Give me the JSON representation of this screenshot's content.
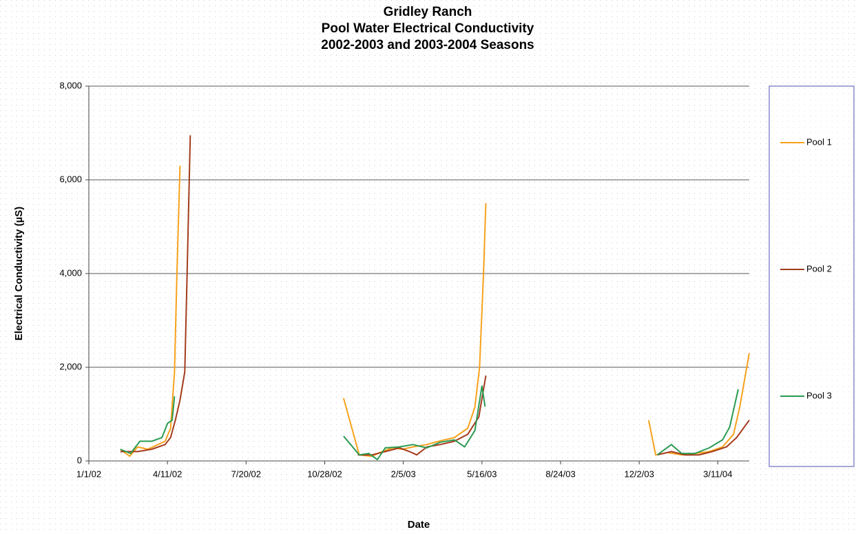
{
  "chart_data": {
    "type": "line",
    "title": [
      "Gridley Ranch",
      "Pool Water Electrical Conductivity",
      "2002-2003 and 2003-2004 Seasons"
    ],
    "x_label": "Date",
    "y_label": "Electrical Conductivity  (µS)",
    "xlim": [
      "1/1/02",
      "4/20/04"
    ],
    "xticks": [
      "1/1/02",
      "4/11/02",
      "7/20/02",
      "10/28/02",
      "2/5/03",
      "5/16/03",
      "8/24/03",
      "12/2/03",
      "3/11/04"
    ],
    "ylim": [
      0,
      8000
    ],
    "yticks": [
      0,
      {
        "value": 2000,
        "label": "2,000"
      },
      {
        "value": 4000,
        "label": "4,000"
      },
      {
        "value": 6000,
        "label": "6,000"
      },
      {
        "value": 8000,
        "label": "8,000"
      }
    ],
    "grid": true,
    "legend": "right",
    "series": [
      {
        "name": "Pool 1",
        "color": "#f7a11a",
        "x": [
          "2/10/02",
          "2/22/02",
          "3/4/02",
          "3/17/02",
          "3/30/02",
          "4/8/02",
          "4/15/02",
          "4/20/02",
          "4/23/02",
          "4/27/02",
          null,
          "11/21/02",
          "12/11/02",
          "12/27/02",
          "1/9/03",
          "1/22/03",
          "2/4/03",
          "2/17/03",
          "3/7/03",
          "3/24/03",
          "4/11/03",
          "4/28/03",
          "5/7/03",
          "5/13/03",
          "5/18/03",
          "5/21/03",
          null,
          "12/14/03",
          "12/23/03",
          "1/7/04",
          "1/25/04",
          "2/11/04",
          "2/29/04",
          "3/17/04",
          "3/31/04",
          "4/8/04",
          "4/20/04"
        ],
        "values": [
          250,
          100,
          300,
          250,
          350,
          420,
          700,
          1900,
          4000,
          6300,
          null,
          1340,
          130,
          100,
          200,
          280,
          250,
          300,
          350,
          430,
          500,
          700,
          1150,
          2000,
          4000,
          5500,
          null,
          870,
          130,
          180,
          130,
          160,
          200,
          300,
          570,
          1160,
          2300
        ]
      },
      {
        "name": "Pool 2",
        "color": "#a33a1c",
        "x": [
          "2/10/02",
          "3/4/02",
          "3/22/02",
          "4/8/02",
          "4/15/02",
          "4/21/02",
          "4/27/02",
          "5/3/02",
          "5/6/02",
          "5/10/02",
          null,
          "12/9/02",
          "12/27/02",
          "1/13/03",
          "1/31/03",
          "2/13/03",
          "2/22/03",
          "3/7/03",
          "3/24/03",
          "4/11/03",
          "4/28/03",
          "5/12/03",
          "5/21/03",
          null,
          "12/25/03",
          "1/12/04",
          "1/29/04",
          "2/16/04",
          "3/4/04",
          "3/22/04",
          "4/4/04",
          "4/20/04"
        ],
        "values": [
          200,
          200,
          250,
          350,
          500,
          870,
          1300,
          1900,
          4000,
          6950,
          null,
          130,
          130,
          200,
          280,
          200,
          130,
          300,
          350,
          420,
          570,
          940,
          1820,
          null,
          130,
          200,
          130,
          130,
          200,
          300,
          500,
          870
        ]
      },
      {
        "name": "Pool 3",
        "color": "#2a9a52",
        "x": [
          "2/10/02",
          "2/23/02",
          "3/7/02",
          "3/22/02",
          "4/4/02",
          "4/11/02",
          "4/17/02",
          "4/20/02",
          null,
          "11/21/02",
          "12/11/02",
          "12/23/02",
          "1/3/03",
          "1/13/03",
          "1/31/03",
          "2/17/03",
          "3/7/03",
          "3/24/03",
          "4/11/03",
          "4/24/03",
          "5/7/03",
          "5/16/03",
          "5/20/03",
          null,
          "12/25/03",
          "1/12/04",
          "1/25/04",
          "2/11/04",
          "2/29/04",
          "3/17/04",
          "3/26/04",
          "4/6/04"
        ],
        "values": [
          250,
          160,
          420,
          420,
          500,
          800,
          870,
          1380,
          null,
          530,
          130,
          160,
          30,
          280,
          300,
          350,
          280,
          400,
          450,
          300,
          650,
          1600,
          1160,
          null,
          130,
          350,
          160,
          160,
          280,
          450,
          720,
          1530
        ]
      }
    ]
  }
}
